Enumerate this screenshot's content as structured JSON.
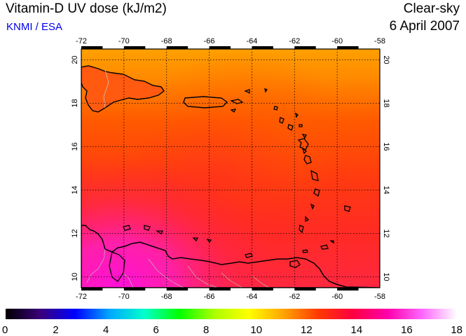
{
  "header": {
    "title": "Vitamin-D UV dose (kJ/m2)",
    "source": "KNMI / ESA",
    "condition": "Clear-sky",
    "date": "6 April 2007"
  },
  "map": {
    "lon_ticks": [
      "-72",
      "-70",
      "-68",
      "-66",
      "-64",
      "-62",
      "-60",
      "-58"
    ],
    "lat_ticks": [
      "10",
      "12",
      "14",
      "16",
      "18",
      "20"
    ],
    "lon_range": [
      -72,
      -58
    ],
    "lat_range": [
      9.5,
      20.5
    ]
  },
  "colorbar": {
    "ticks": [
      "0",
      "2",
      "4",
      "6",
      "8",
      "10",
      "12",
      "14",
      "16",
      "18"
    ],
    "range": [
      0,
      18
    ],
    "stops": [
      "#000000",
      "#3a007a",
      "#0000ff",
      "#00a8ff",
      "#00ffcc",
      "#00ff00",
      "#aaff00",
      "#ffff00",
      "#ffa500",
      "#ff3a00",
      "#ff0040",
      "#ff00aa",
      "#ff66ff",
      "#ffffff"
    ]
  }
}
